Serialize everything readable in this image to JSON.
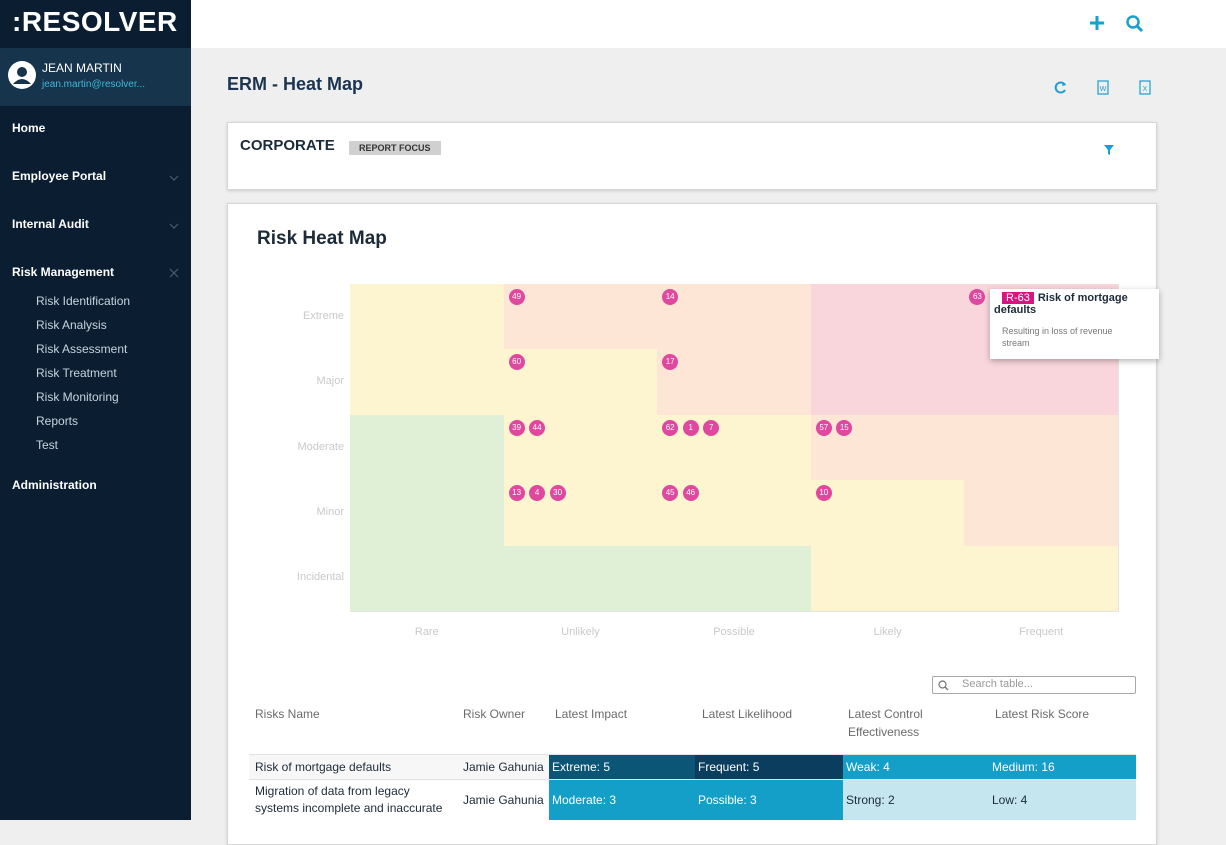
{
  "sidebar": {
    "logo": ":RESOLVER",
    "user": {
      "name": "JEAN MARTIN",
      "email": "jean.martin@resolver..."
    },
    "nav": [
      {
        "label": "Home"
      },
      {
        "label": "Employee Portal"
      },
      {
        "label": "Internal Audit"
      },
      {
        "label": "Risk Management",
        "children": [
          "Risk Identification",
          "Risk Analysis",
          "Risk Assessment",
          "Risk Treatment",
          "Risk Monitoring",
          "Reports",
          "Test"
        ]
      },
      {
        "label": "Administration"
      }
    ]
  },
  "page": {
    "title": "ERM - Heat Map"
  },
  "focus": {
    "title": "CORPORATE",
    "badge": "REPORT FOCUS"
  },
  "heatmap": {
    "title": "Risk Heat Map",
    "impact": [
      "Extreme",
      "Major",
      "Moderate",
      "Minor",
      "Incidental"
    ],
    "likelihood": [
      "Rare",
      "Unlikely",
      "Possible",
      "Likely",
      "Frequent"
    ],
    "cells": [
      [
        {
          "color": "#fdf5cf",
          "risks": []
        },
        {
          "color": "#fde6d5",
          "risks": [
            49
          ]
        },
        {
          "color": "#fde6d5",
          "risks": [
            14
          ]
        },
        {
          "color": "#f9d6dc",
          "risks": []
        },
        {
          "color": "#f9d6dc",
          "risks": [
            63
          ]
        }
      ],
      [
        {
          "color": "#fdf5cf",
          "risks": []
        },
        {
          "color": "#fdf5cf",
          "risks": [
            60
          ]
        },
        {
          "color": "#fde6d5",
          "risks": [
            17
          ]
        },
        {
          "color": "#f9d6dc",
          "risks": []
        },
        {
          "color": "#f9d6dc",
          "risks": []
        }
      ],
      [
        {
          "color": "#dff0d6",
          "risks": []
        },
        {
          "color": "#fdf5cf",
          "risks": [
            39,
            44
          ]
        },
        {
          "color": "#fdf5cf",
          "risks": [
            62,
            1,
            7
          ]
        },
        {
          "color": "#fde6d5",
          "risks": [
            57,
            15
          ]
        },
        {
          "color": "#fde6d5",
          "risks": []
        }
      ],
      [
        {
          "color": "#dff0d6",
          "risks": []
        },
        {
          "color": "#fdf5cf",
          "risks": [
            13,
            4,
            30
          ]
        },
        {
          "color": "#fdf5cf",
          "risks": [
            45,
            46
          ]
        },
        {
          "color": "#fdf5cf",
          "risks": [
            10
          ]
        },
        {
          "color": "#fde6d5",
          "risks": []
        }
      ],
      [
        {
          "color": "#dff0d6",
          "risks": []
        },
        {
          "color": "#dff0d6",
          "risks": []
        },
        {
          "color": "#dff0d6",
          "risks": []
        },
        {
          "color": "#fdf5cf",
          "risks": []
        },
        {
          "color": "#fdf5cf",
          "risks": []
        }
      ]
    ],
    "tooltip": {
      "id": "R-63",
      "name": "Risk of mortgage defaults",
      "description": "Resulting in loss of revenue stream"
    }
  },
  "table": {
    "search_placeholder": "Search table...",
    "headers": [
      "Risks Name",
      "Risk Owner",
      "Latest Impact",
      "Latest Likelihood",
      "Latest Control Effectiveness",
      "Latest Risk Score"
    ],
    "rows": [
      [
        {
          "text": "Risk of mortgage defaults"
        },
        {
          "text": "Jamie Gahunia"
        },
        {
          "text": "Extreme: 5",
          "color": "#0b5577"
        },
        {
          "text": "Frequent: 5",
          "color": "#0a3d5e"
        },
        {
          "text": "Weak: 4",
          "color": "#139fc8"
        },
        {
          "text": "Medium: 16",
          "color": "#139fc8"
        }
      ],
      [
        {
          "text": "Migration of data from legacy systems incomplete and inaccurate"
        },
        {
          "text": "Jamie Gahunia"
        },
        {
          "text": "Moderate: 3",
          "color": "#139fc8"
        },
        {
          "text": "Possible: 3",
          "color": "#139fc8"
        },
        {
          "text": "Strong: 2",
          "color": "#c6e6ef"
        },
        {
          "text": "Low: 4",
          "color": "#c6e6ef"
        }
      ]
    ]
  }
}
